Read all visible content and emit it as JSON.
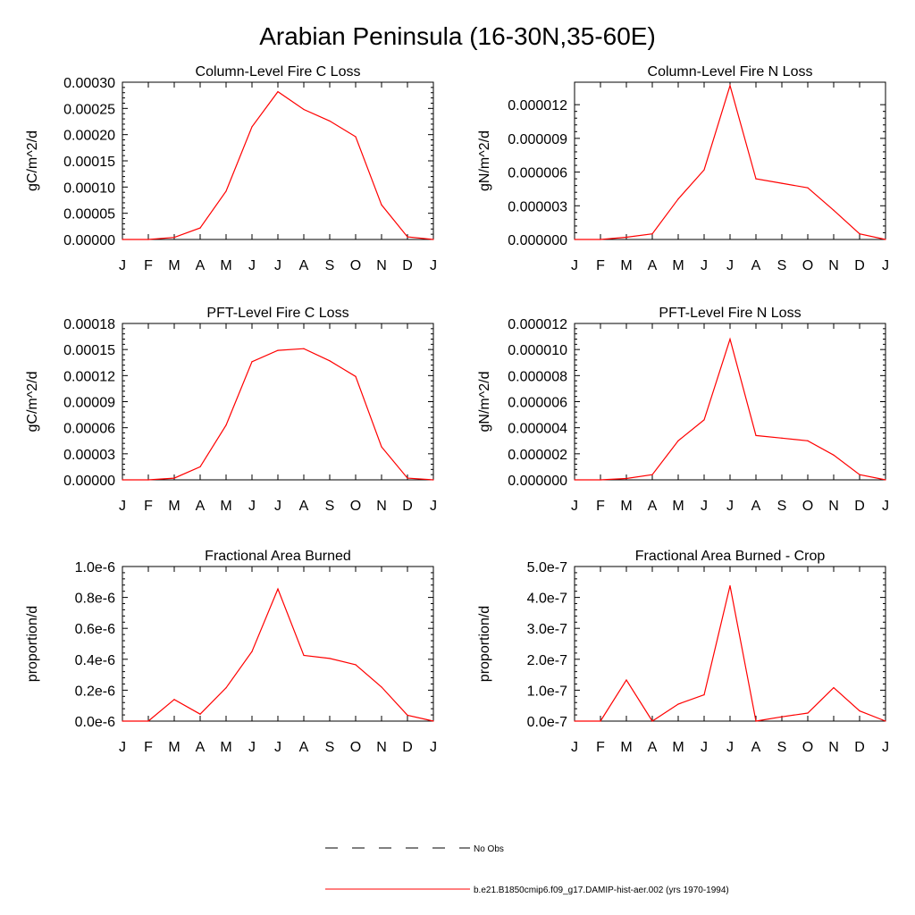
{
  "page_title": "Arabian Peninsula (16-30N,35-60E)",
  "months": [
    "J",
    "F",
    "M",
    "A",
    "M",
    "J",
    "J",
    "A",
    "S",
    "O",
    "N",
    "D",
    "J"
  ],
  "legend": {
    "obs_label": "No Obs",
    "model_label": "b.e21.B1850cmip6.f09_g17.DAMIP-hist-aer.002 (yrs 1970-1994)",
    "obs_color": "#000000",
    "model_color": "#ff0000"
  },
  "chart_data": [
    {
      "type": "line",
      "title": "Column-Level Fire C Loss",
      "ylabel": "gC/m^2/d",
      "ylim": [
        0,
        0.0003
      ],
      "yticks": [
        "0.00000",
        "0.00005",
        "0.00010",
        "0.00015",
        "0.00020",
        "0.00025",
        "0.00030"
      ],
      "series": [
        {
          "values": [
            0,
            0,
            4e-06,
            2.2e-05,
            9.2e-05,
            0.000215,
            0.000282,
            0.000248,
            0.000226,
            0.000196,
            6.6e-05,
            5e-06,
            0
          ]
        }
      ]
    },
    {
      "type": "line",
      "title": "Column-Level Fire N Loss",
      "ylabel": "gN/m^2/d",
      "ylim": [
        0,
        1.4e-05
      ],
      "yticks": [
        "0.000000",
        "0.000003",
        "0.000006",
        "0.000009",
        "0.000012"
      ],
      "series": [
        {
          "values": [
            0,
            0,
            2e-07,
            5e-07,
            3.6e-06,
            6.2e-06,
            1.37e-05,
            5.4e-06,
            5e-06,
            4.6e-06,
            2.6e-06,
            5e-07,
            0
          ]
        }
      ]
    },
    {
      "type": "line",
      "title": "PFT-Level Fire C Loss",
      "ylabel": "gC/m^2/d",
      "ylim": [
        0,
        0.00018
      ],
      "yticks": [
        "0.00000",
        "0.00003",
        "0.00006",
        "0.00009",
        "0.00012",
        "0.00015",
        "0.00018"
      ],
      "series": [
        {
          "values": [
            0,
            0,
            2e-06,
            1.5e-05,
            6.3e-05,
            0.000136,
            0.000149,
            0.000151,
            0.000137,
            0.000119,
            3.8e-05,
            2e-06,
            0
          ]
        }
      ]
    },
    {
      "type": "line",
      "title": "PFT-Level Fire N Loss",
      "ylabel": "gN/m^2/d",
      "ylim": [
        0,
        1.2e-05
      ],
      "yticks": [
        "0.000000",
        "0.000002",
        "0.000004",
        "0.000006",
        "0.000008",
        "0.000010",
        "0.000012"
      ],
      "series": [
        {
          "values": [
            0,
            0,
            1e-07,
            4e-07,
            3e-06,
            4.6e-06,
            1.08e-05,
            3.4e-06,
            3.2e-06,
            3e-06,
            1.9e-06,
            4e-07,
            0
          ]
        }
      ]
    },
    {
      "type": "line",
      "title": "Fractional Area Burned",
      "ylabel": "proportion/d",
      "ylim": [
        0,
        1e-06
      ],
      "yticks": [
        "0.0e-6",
        "0.2e-6",
        "0.4e-6",
        "0.6e-6",
        "0.8e-6",
        "1.0e-6"
      ],
      "series": [
        {
          "values": [
            0,
            0,
            1.4e-07,
            4.5e-08,
            2.15e-07,
            4.5e-07,
            8.55e-07,
            4.25e-07,
            4.05e-07,
            3.65e-07,
            2.2e-07,
            3.8e-08,
            0
          ]
        }
      ]
    },
    {
      "type": "line",
      "title": "Fractional Area Burned - Crop",
      "ylabel": "proportion/d",
      "ylim": [
        0,
        5e-07
      ],
      "yticks": [
        "0.0e-7",
        "1.0e-7",
        "2.0e-7",
        "3.0e-7",
        "4.0e-7",
        "5.0e-7"
      ],
      "series": [
        {
          "values": [
            0,
            0,
            1.33e-07,
            0,
            5.5e-08,
            8.5e-08,
            4.38e-07,
            0,
            1.4e-08,
            2.6e-08,
            1.08e-07,
            3.3e-08,
            0
          ]
        }
      ]
    }
  ]
}
